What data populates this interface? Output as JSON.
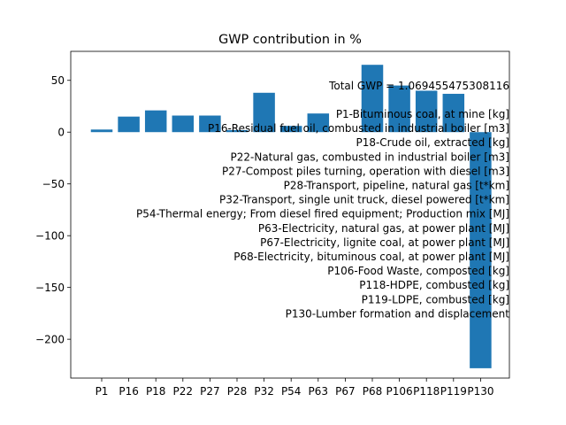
{
  "chart_data": {
    "type": "bar",
    "title": "GWP contribution in %",
    "xlabel": "",
    "ylabel": "",
    "ylim": [
      -237.5,
      78
    ],
    "yticks": [
      50,
      0,
      -50,
      -100,
      -150,
      -200
    ],
    "categories": [
      "P1",
      "P16",
      "P18",
      "P22",
      "P27",
      "P28",
      "P32",
      "P54",
      "P63",
      "P67",
      "P68",
      "P106",
      "P118",
      "P119",
      "P130"
    ],
    "values": [
      2.5,
      15,
      21,
      16,
      16,
      2,
      38,
      6,
      18,
      0,
      65,
      45,
      40,
      37,
      -228
    ],
    "bar_color": "#1f77b4",
    "grid": false,
    "annotations": {
      "total": "Total GWP = 1.069455475308116",
      "process_list": [
        "P1-Bituminous coal, at mine [kg]",
        "P16-Residual fuel oil, combusted in industrial boiler [m3]",
        "P18-Crude oil, extracted [kg]",
        "P22-Natural gas, combusted in industrial boiler [m3]",
        "P27-Compost piles turning, operation with diesel [m3]",
        "P28-Transport, pipeline, natural gas [t*km]",
        "P32-Transport, single unit truck, diesel powered [t*km]",
        "P54-Thermal energy; From diesel fired equipment; Production mix [MJ]",
        "P63-Electricity, natural gas, at power plant [MJ]",
        "P67-Electricity, lignite coal, at power plant [MJ]",
        "P68-Electricity, bituminous coal, at power plant [MJ]",
        "P106-Food Waste, composted [kg]",
        "P118-HDPE, combusted [kg]",
        "P119-LDPE, combusted [kg]",
        "P130-Lumber formation and displacement"
      ]
    }
  }
}
